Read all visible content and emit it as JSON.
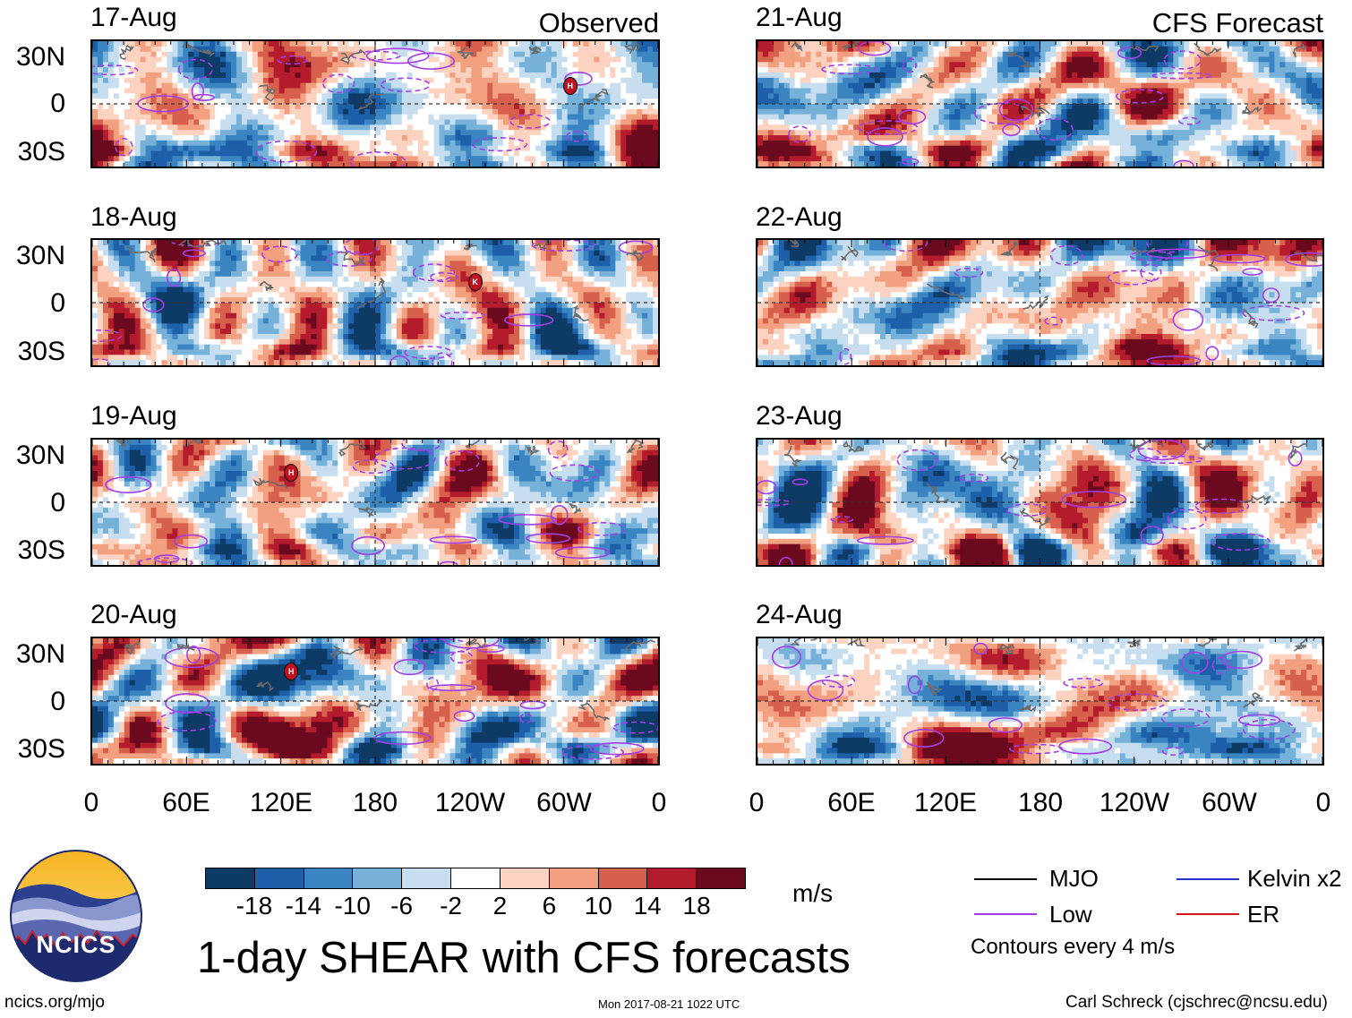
{
  "title": "1-day SHEAR with CFS forecasts",
  "observed_label": "Observed",
  "forecast_label": "CFS Forecast",
  "observed_dates": [
    "17-Aug",
    "18-Aug",
    "19-Aug",
    "20-Aug"
  ],
  "forecast_dates": [
    "21-Aug",
    "22-Aug",
    "23-Aug",
    "24-Aug"
  ],
  "lat_labels": [
    "30N",
    "0",
    "30S"
  ],
  "lon_labels": [
    "0",
    "60E",
    "120E",
    "180",
    "120W",
    "60W",
    "0"
  ],
  "colorbar": {
    "ticks": [
      "-18",
      "-14",
      "-10",
      "-6",
      "-2",
      "2",
      "6",
      "10",
      "14",
      "18"
    ],
    "units": "m/s",
    "colors": [
      "#0d3b66",
      "#1d5fa8",
      "#3a84c2",
      "#75b1d8",
      "#c6def0",
      "#ffffff",
      "#fbd3c0",
      "#f2a07f",
      "#d7604d",
      "#b41b2c",
      "#6b0a1e"
    ]
  },
  "legend": {
    "items": [
      {
        "label": "MJO",
        "color": "#000000"
      },
      {
        "label": "Kelvin x2",
        "color": "#2233cc"
      },
      {
        "label": "Low",
        "color": "#a33ee8"
      },
      {
        "label": "ER",
        "color": "#d9141e"
      }
    ],
    "contours_note": "Contours every 4 m/s"
  },
  "logo_text": "NCICS",
  "footer": {
    "url": "ncics.org/mjo",
    "timestamp": "Mon 2017-08-21 1022 UTC",
    "credit": "Carl Schreck (cjschrec@ncsu.edu)"
  },
  "storm_marker": "H",
  "storm_marker_alt": "K"
}
